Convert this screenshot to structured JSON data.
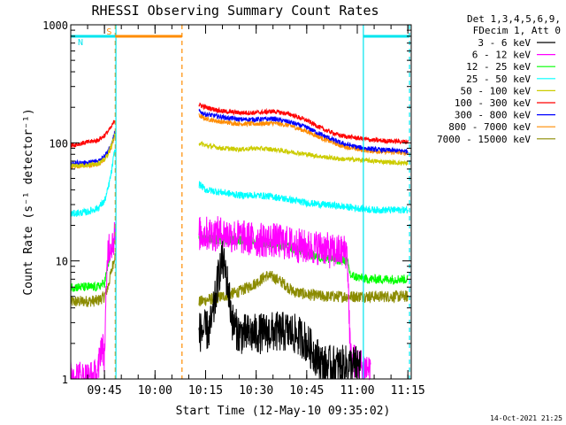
{
  "chart_data": {
    "type": "line",
    "title": "RHESSI Observing Summary Count Rates",
    "xlabel": "Start Time (12-May-10 09:35:02)",
    "ylabel": "Count Rate (s⁻¹ detector⁻¹)",
    "x_unit": "minutes after 09:35:02",
    "xlim": [
      0,
      101
    ],
    "ylim": [
      1,
      1000
    ],
    "yscale": "log",
    "x_ticks": [
      {
        "label": "09:45",
        "x": 10
      },
      {
        "label": "10:00",
        "x": 25
      },
      {
        "label": "10:15",
        "x": 40
      },
      {
        "label": "10:30",
        "x": 55
      },
      {
        "label": "10:45",
        "x": 70
      },
      {
        "label": "11:00",
        "x": 85
      },
      {
        "label": "11:15",
        "x": 100
      }
    ],
    "y_ticks": [
      {
        "label": "1",
        "y": 1
      },
      {
        "label": "10",
        "y": 10
      },
      {
        "label": "100",
        "y": 100
      },
      {
        "label": "1000",
        "y": 1000
      }
    ],
    "legend_header": [
      "Det 1,3,4,5,6,9,",
      "FDecim 1, Att 0"
    ],
    "legend_position": "right",
    "timestamp": "14-Oct-2021 21:25",
    "flags": [
      {
        "label": "S",
        "color": "#ff8c00",
        "start": 13.2,
        "end": 33.0
      },
      {
        "label": "N",
        "color": "#00e5ee",
        "start": 0,
        "end": 13.2
      },
      {
        "label": "",
        "color": "#00e5ee",
        "start": 86.8,
        "end": 100.5
      }
    ],
    "markers": [
      {
        "x": 13.2,
        "color": "#ff8c00",
        "style": "dashed"
      },
      {
        "x": 13.4,
        "color": "#00e5ee",
        "style": "solid"
      },
      {
        "x": 33.0,
        "color": "#ff8c00",
        "style": "dashed"
      },
      {
        "x": 86.8,
        "color": "#00e5ee",
        "style": "solid"
      },
      {
        "x": 100.5,
        "color": "#00e5ee",
        "style": "dashed"
      }
    ],
    "series": [
      {
        "name": "3 - 6 keV",
        "color": "#000000",
        "noise": 0.35,
        "points": [
          [
            38,
            2.5
          ],
          [
            41,
            2.6
          ],
          [
            42,
            3.2
          ],
          [
            43,
            5
          ],
          [
            44,
            8
          ],
          [
            45,
            10
          ],
          [
            46,
            8
          ],
          [
            47,
            5
          ],
          [
            48,
            3
          ],
          [
            50,
            2.4
          ],
          [
            55,
            2.4
          ],
          [
            60,
            2.5
          ],
          [
            65,
            2.5
          ],
          [
            69,
            2.2
          ],
          [
            70,
            2.0
          ],
          [
            75,
            1.3
          ],
          [
            80,
            1.3
          ],
          [
            84,
            1.3
          ],
          [
            86,
            1.3
          ]
        ]
      },
      {
        "name": "6 - 12 keV",
        "color": "#ff00ff",
        "noise": 0.3,
        "points": [
          [
            0,
            1.1
          ],
          [
            4,
            1.0
          ],
          [
            8,
            1.05
          ],
          [
            9,
            2.0
          ],
          [
            10,
            1.6
          ],
          [
            11,
            13
          ],
          [
            12,
            14
          ],
          [
            13,
            16
          ],
          [
            38,
            17
          ],
          [
            45,
            17
          ],
          [
            50,
            16
          ],
          [
            55,
            15
          ],
          [
            60,
            15
          ],
          [
            65,
            14
          ],
          [
            70,
            13
          ],
          [
            75,
            13
          ],
          [
            77,
            12
          ],
          [
            80,
            12
          ],
          [
            82,
            12
          ],
          [
            83,
            1.5
          ],
          [
            86,
            1.3
          ],
          [
            89,
            1.2
          ]
        ]
      },
      {
        "name": "12 - 25 keV",
        "color": "#00ff00",
        "noise": 0.08,
        "points": [
          [
            0,
            6
          ],
          [
            8,
            6
          ],
          [
            10,
            6.5
          ],
          [
            11,
            9
          ],
          [
            12,
            12
          ],
          [
            13,
            15
          ],
          [
            38,
            15.5
          ],
          [
            45,
            15
          ],
          [
            50,
            15
          ],
          [
            55,
            14.5
          ],
          [
            60,
            14
          ],
          [
            65,
            13
          ],
          [
            70,
            11.5
          ],
          [
            75,
            10.5
          ],
          [
            82,
            10
          ],
          [
            83,
            7.5
          ],
          [
            88,
            7
          ],
          [
            100,
            7
          ]
        ]
      },
      {
        "name": "25 - 50 keV",
        "color": "#00ffff",
        "noise": 0.06,
        "points": [
          [
            0,
            25
          ],
          [
            5,
            26
          ],
          [
            8,
            28
          ],
          [
            10,
            32
          ],
          [
            11,
            40
          ],
          [
            12,
            55
          ],
          [
            13,
            85
          ],
          [
            38,
            45
          ],
          [
            40,
            40
          ],
          [
            45,
            38
          ],
          [
            50,
            36
          ],
          [
            55,
            36
          ],
          [
            60,
            35
          ],
          [
            65,
            33
          ],
          [
            70,
            31
          ],
          [
            75,
            30
          ],
          [
            80,
            29
          ],
          [
            85,
            28
          ],
          [
            90,
            27
          ],
          [
            100,
            27
          ]
        ]
      },
      {
        "name": "50 - 100 keV",
        "color": "#cccc00",
        "noise": 0.04,
        "points": [
          [
            0,
            64
          ],
          [
            5,
            65
          ],
          [
            8,
            67
          ],
          [
            10,
            72
          ],
          [
            11,
            80
          ],
          [
            12,
            95
          ],
          [
            13,
            115
          ],
          [
            38,
            100
          ],
          [
            40,
            95
          ],
          [
            45,
            90
          ],
          [
            50,
            88
          ],
          [
            55,
            90
          ],
          [
            60,
            88
          ],
          [
            65,
            84
          ],
          [
            70,
            80
          ],
          [
            75,
            76
          ],
          [
            80,
            73
          ],
          [
            85,
            72
          ],
          [
            90,
            70
          ],
          [
            100,
            67
          ]
        ]
      },
      {
        "name": "100 - 300 keV",
        "color": "#ff0000",
        "noise": 0.04,
        "points": [
          [
            0,
            95
          ],
          [
            4,
            100
          ],
          [
            8,
            105
          ],
          [
            10,
            115
          ],
          [
            11,
            125
          ],
          [
            12,
            135
          ],
          [
            13,
            155
          ],
          [
            38,
            210
          ],
          [
            40,
            200
          ],
          [
            45,
            185
          ],
          [
            50,
            180
          ],
          [
            55,
            180
          ],
          [
            60,
            185
          ],
          [
            65,
            175
          ],
          [
            70,
            155
          ],
          [
            75,
            130
          ],
          [
            80,
            115
          ],
          [
            85,
            110
          ],
          [
            90,
            105
          ],
          [
            100,
            102
          ]
        ]
      },
      {
        "name": "300 - 800 keV",
        "color": "#0000ff",
        "noise": 0.04,
        "points": [
          [
            0,
            67
          ],
          [
            5,
            68
          ],
          [
            8,
            70
          ],
          [
            10,
            78
          ],
          [
            11,
            85
          ],
          [
            12,
            95
          ],
          [
            13,
            120
          ],
          [
            38,
            185
          ],
          [
            40,
            175
          ],
          [
            45,
            165
          ],
          [
            50,
            158
          ],
          [
            55,
            158
          ],
          [
            60,
            160
          ],
          [
            65,
            150
          ],
          [
            70,
            135
          ],
          [
            75,
            115
          ],
          [
            80,
            100
          ],
          [
            85,
            92
          ],
          [
            90,
            88
          ],
          [
            100,
            85
          ]
        ]
      },
      {
        "name": "800 - 7000 keV",
        "color": "#ff8c00",
        "noise": 0.04,
        "points": [
          [
            0,
            63
          ],
          [
            5,
            64
          ],
          [
            8,
            66
          ],
          [
            10,
            72
          ],
          [
            11,
            80
          ],
          [
            12,
            90
          ],
          [
            13,
            115
          ],
          [
            38,
            170
          ],
          [
            40,
            160
          ],
          [
            45,
            150
          ],
          [
            50,
            145
          ],
          [
            55,
            145
          ],
          [
            60,
            147
          ],
          [
            65,
            140
          ],
          [
            70,
            125
          ],
          [
            75,
            108
          ],
          [
            80,
            95
          ],
          [
            85,
            88
          ],
          [
            90,
            85
          ],
          [
            100,
            82
          ]
        ]
      },
      {
        "name": "7000 - 15000 keV",
        "color": "#8b8b00",
        "noise": 0.1,
        "points": [
          [
            0,
            4.5
          ],
          [
            8,
            4.6
          ],
          [
            10,
            5
          ],
          [
            11,
            6
          ],
          [
            12,
            8
          ],
          [
            13,
            11
          ],
          [
            38,
            4.5
          ],
          [
            45,
            5
          ],
          [
            50,
            5.5
          ],
          [
            55,
            6.5
          ],
          [
            58,
            7.5
          ],
          [
            60,
            7.3
          ],
          [
            63,
            6.5
          ],
          [
            66,
            5.5
          ],
          [
            70,
            5.2
          ],
          [
            75,
            5
          ],
          [
            80,
            5
          ],
          [
            85,
            5
          ],
          [
            90,
            5
          ],
          [
            100,
            5
          ]
        ]
      }
    ]
  }
}
